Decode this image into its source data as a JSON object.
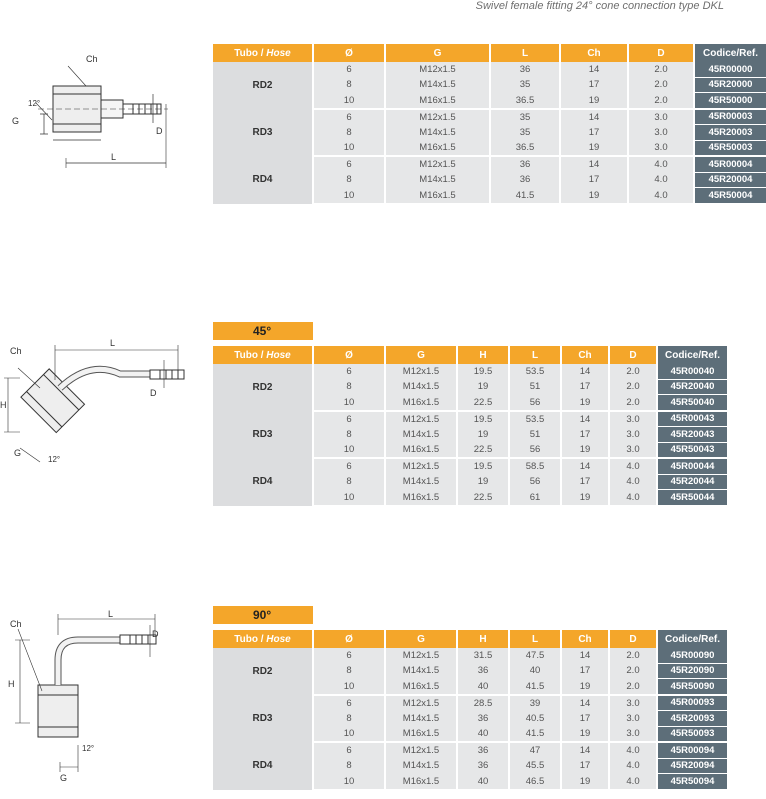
{
  "header": {
    "title": "Swivel female fitting  24° cone connection type DKL"
  },
  "drawings": {
    "straight": {
      "labels": {
        "ch": "Ch",
        "g": "G",
        "d": "D",
        "l": "L",
        "angle": "12°"
      }
    },
    "elbow45": {
      "labels": {
        "ch": "Ch",
        "g": "G",
        "d": "D",
        "l": "L",
        "h": "H",
        "angle": "12°"
      }
    },
    "elbow90": {
      "labels": {
        "ch": "Ch",
        "g": "G",
        "d": "D",
        "l": "L",
        "h": "H",
        "angle": "12°"
      }
    }
  },
  "tables": [
    {
      "title": "",
      "headers": {
        "hose_a": "Tubo / ",
        "hose_b": "Hose",
        "dia": "Ø",
        "g": "G",
        "l": "L",
        "ch": "Ch",
        "d": "D",
        "code": "Codice/Ref."
      },
      "groups": [
        {
          "name": "RD2",
          "rows": [
            {
              "dia": "6",
              "g": "M12x1.5",
              "l": "36",
              "ch": "14",
              "d": "2.0",
              "code": "45R00000"
            },
            {
              "dia": "8",
              "g": "M14x1.5",
              "l": "35",
              "ch": "17",
              "d": "2.0",
              "code": "45R20000"
            },
            {
              "dia": "10",
              "g": "M16x1.5",
              "l": "36.5",
              "ch": "19",
              "d": "2.0",
              "code": "45R50000"
            }
          ]
        },
        {
          "name": "RD3",
          "rows": [
            {
              "dia": "6",
              "g": "M12x1.5",
              "l": "35",
              "ch": "14",
              "d": "3.0",
              "code": "45R00003"
            },
            {
              "dia": "8",
              "g": "M14x1.5",
              "l": "35",
              "ch": "17",
              "d": "3.0",
              "code": "45R20003"
            },
            {
              "dia": "10",
              "g": "M16x1.5",
              "l": "36.5",
              "ch": "19",
              "d": "3.0",
              "code": "45R50003"
            }
          ]
        },
        {
          "name": "RD4",
          "rows": [
            {
              "dia": "6",
              "g": "M12x1.5",
              "l": "36",
              "ch": "14",
              "d": "4.0",
              "code": "45R00004"
            },
            {
              "dia": "8",
              "g": "M14x1.5",
              "l": "36",
              "ch": "17",
              "d": "4.0",
              "code": "45R20004"
            },
            {
              "dia": "10",
              "g": "M16x1.5",
              "l": "41.5",
              "ch": "19",
              "d": "4.0",
              "code": "45R50004"
            }
          ]
        }
      ]
    },
    {
      "title": "45°",
      "headers": {
        "hose_a": "Tubo / ",
        "hose_b": "Hose",
        "dia": "Ø",
        "g": "G",
        "h": "H",
        "l": "L",
        "ch": "Ch",
        "d": "D",
        "code": "Codice/Ref."
      },
      "groups": [
        {
          "name": "RD2",
          "rows": [
            {
              "dia": "6",
              "g": "M12x1.5",
              "h": "19.5",
              "l": "53.5",
              "ch": "14",
              "d": "2.0",
              "code": "45R00040"
            },
            {
              "dia": "8",
              "g": "M14x1.5",
              "h": "19",
              "l": "51",
              "ch": "17",
              "d": "2.0",
              "code": "45R20040"
            },
            {
              "dia": "10",
              "g": "M16x1.5",
              "h": "22.5",
              "l": "56",
              "ch": "19",
              "d": "2.0",
              "code": "45R50040"
            }
          ]
        },
        {
          "name": "RD3",
          "rows": [
            {
              "dia": "6",
              "g": "M12x1.5",
              "h": "19.5",
              "l": "53.5",
              "ch": "14",
              "d": "3.0",
              "code": "45R00043"
            },
            {
              "dia": "8",
              "g": "M14x1.5",
              "h": "19",
              "l": "51",
              "ch": "17",
              "d": "3.0",
              "code": "45R20043"
            },
            {
              "dia": "10",
              "g": "M16x1.5",
              "h": "22.5",
              "l": "56",
              "ch": "19",
              "d": "3.0",
              "code": "45R50043"
            }
          ]
        },
        {
          "name": "RD4",
          "rows": [
            {
              "dia": "6",
              "g": "M12x1.5",
              "h": "19.5",
              "l": "58.5",
              "ch": "14",
              "d": "4.0",
              "code": "45R00044"
            },
            {
              "dia": "8",
              "g": "M14x1.5",
              "h": "19",
              "l": "56",
              "ch": "17",
              "d": "4.0",
              "code": "45R20044"
            },
            {
              "dia": "10",
              "g": "M16x1.5",
              "h": "22.5",
              "l": "61",
              "ch": "19",
              "d": "4.0",
              "code": "45R50044"
            }
          ]
        }
      ]
    },
    {
      "title": "90°",
      "headers": {
        "hose_a": "Tubo / ",
        "hose_b": "Hose",
        "dia": "Ø",
        "g": "G",
        "h": "H",
        "l": "L",
        "ch": "Ch",
        "d": "D",
        "code": "Codice/Ref."
      },
      "groups": [
        {
          "name": "RD2",
          "rows": [
            {
              "dia": "6",
              "g": "M12x1.5",
              "h": "31.5",
              "l": "47.5",
              "ch": "14",
              "d": "2.0",
              "code": "45R00090"
            },
            {
              "dia": "8",
              "g": "M14x1.5",
              "h": "36",
              "l": "40",
              "ch": "17",
              "d": "2.0",
              "code": "45R20090"
            },
            {
              "dia": "10",
              "g": "M16x1.5",
              "h": "40",
              "l": "41.5",
              "ch": "19",
              "d": "2.0",
              "code": "45R50090"
            }
          ]
        },
        {
          "name": "RD3",
          "rows": [
            {
              "dia": "6",
              "g": "M12x1.5",
              "h": "28.5",
              "l": "39",
              "ch": "14",
              "d": "3.0",
              "code": "45R00093"
            },
            {
              "dia": "8",
              "g": "M14x1.5",
              "h": "36",
              "l": "40.5",
              "ch": "17",
              "d": "3.0",
              "code": "45R20093"
            },
            {
              "dia": "10",
              "g": "M16x1.5",
              "h": "40",
              "l": "41.5",
              "ch": "19",
              "d": "3.0",
              "code": "45R50093"
            }
          ]
        },
        {
          "name": "RD4",
          "rows": [
            {
              "dia": "6",
              "g": "M12x1.5",
              "h": "36",
              "l": "47",
              "ch": "14",
              "d": "4.0",
              "code": "45R00094"
            },
            {
              "dia": "8",
              "g": "M14x1.5",
              "h": "36",
              "l": "45.5",
              "ch": "17",
              "d": "4.0",
              "code": "45R20094"
            },
            {
              "dia": "10",
              "g": "M16x1.5",
              "h": "40",
              "l": "46.5",
              "ch": "19",
              "d": "4.0",
              "code": "45R50094"
            }
          ]
        }
      ]
    }
  ]
}
